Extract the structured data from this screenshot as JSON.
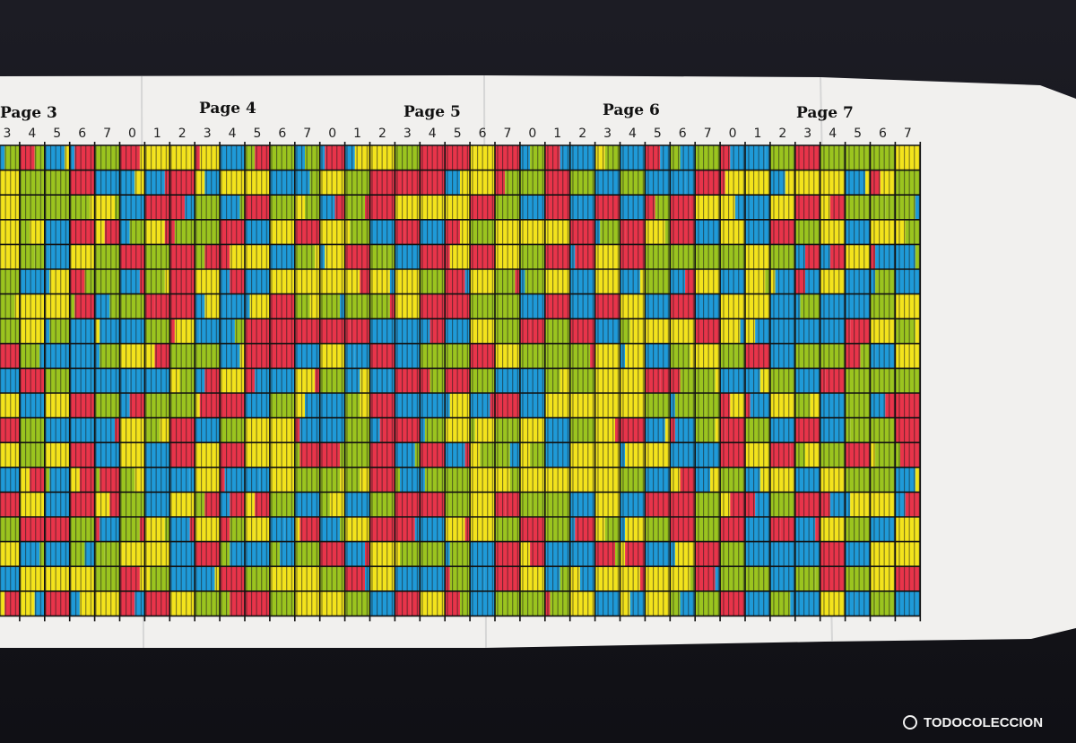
{
  "pages": [
    "Page 3",
    "Page 4",
    "Page 5",
    "Page 6",
    "Page 7"
  ],
  "column_labels": [
    "3",
    "4",
    "5",
    "6",
    "7",
    "0",
    "1",
    "2",
    "3",
    "4",
    "5",
    "6",
    "7",
    "0",
    "1",
    "2",
    "3",
    "4",
    "5",
    "6",
    "7",
    "0",
    "1",
    "2",
    "3",
    "4",
    "5",
    "6",
    "7",
    "0",
    "1",
    "2",
    "3",
    "4",
    "5",
    "6",
    "7"
  ],
  "watermark": "TODOCOLECCION"
}
